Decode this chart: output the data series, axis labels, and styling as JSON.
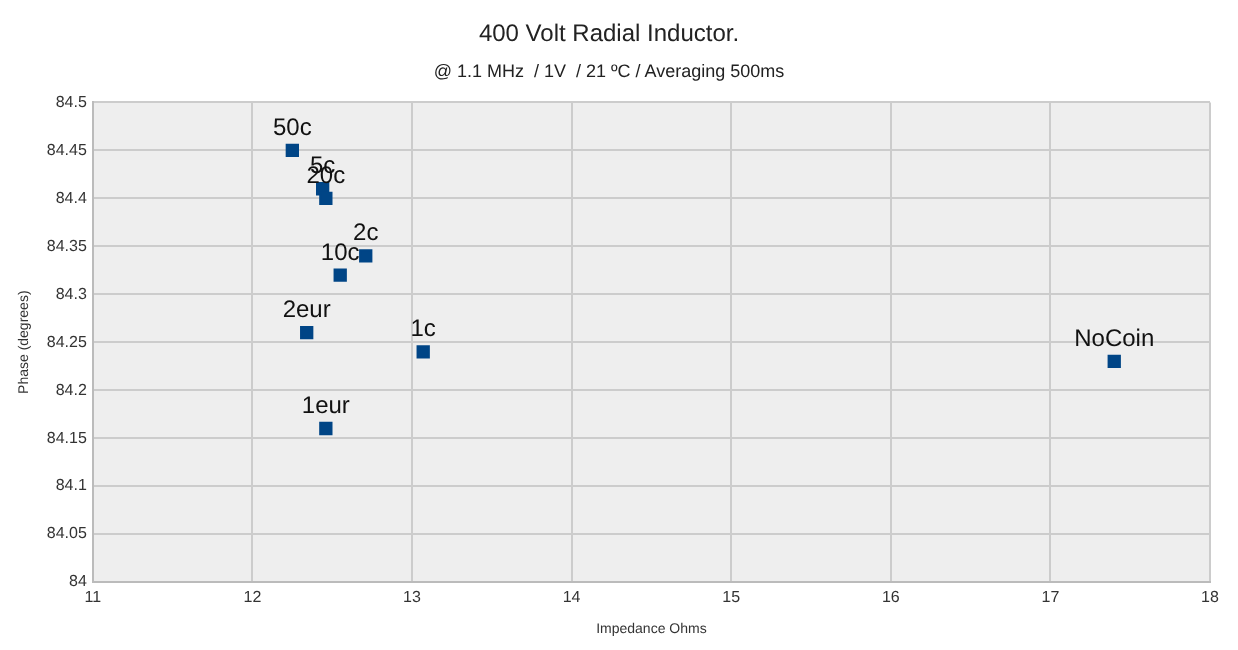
{
  "chart_data": {
    "type": "scatter",
    "title": "400 Volt Radial Inductor.",
    "subtitle": "@ 1.1 MHz  / 1V  / 21 ºC / Averaging 500ms",
    "xlabel": "Impedance Ohms",
    "ylabel": "Phase (degrees)",
    "series": [
      {
        "color": "#004586",
        "x": [
          12.25,
          12.44,
          12.46,
          12.71,
          12.55,
          12.34,
          13.07,
          12.46,
          17.4
        ],
        "values": [
          84.45,
          84.41,
          84.4,
          84.34,
          84.32,
          84.26,
          84.24,
          84.16,
          84.23
        ]
      }
    ],
    "xlim": [
      11,
      18
    ],
    "xticks": [
      11,
      12,
      13,
      14,
      15,
      16,
      17,
      18
    ],
    "ylim": [
      84,
      84.5
    ],
    "yticks": [
      84,
      84.05,
      84.1,
      84.15,
      84.2,
      84.25,
      84.3,
      84.35,
      84.4,
      84.45,
      84.5
    ],
    "grid": true,
    "legend": false,
    "marker": "square",
    "annotations": [
      {
        "text": "50c",
        "x": 12.25,
        "y": 84.45
      },
      {
        "text": "5c",
        "x": 12.44,
        "y": 84.41
      },
      {
        "text": "20c",
        "x": 12.46,
        "y": 84.4
      },
      {
        "text": "2c",
        "x": 12.71,
        "y": 84.34
      },
      {
        "text": "10c",
        "x": 12.55,
        "y": 84.32
      },
      {
        "text": "2eur",
        "x": 12.34,
        "y": 84.26
      },
      {
        "text": "1c",
        "x": 13.07,
        "y": 84.24
      },
      {
        "text": "1eur",
        "x": 12.46,
        "y": 84.16
      },
      {
        "text": "NoCoin",
        "x": 17.4,
        "y": 84.23
      }
    ]
  }
}
